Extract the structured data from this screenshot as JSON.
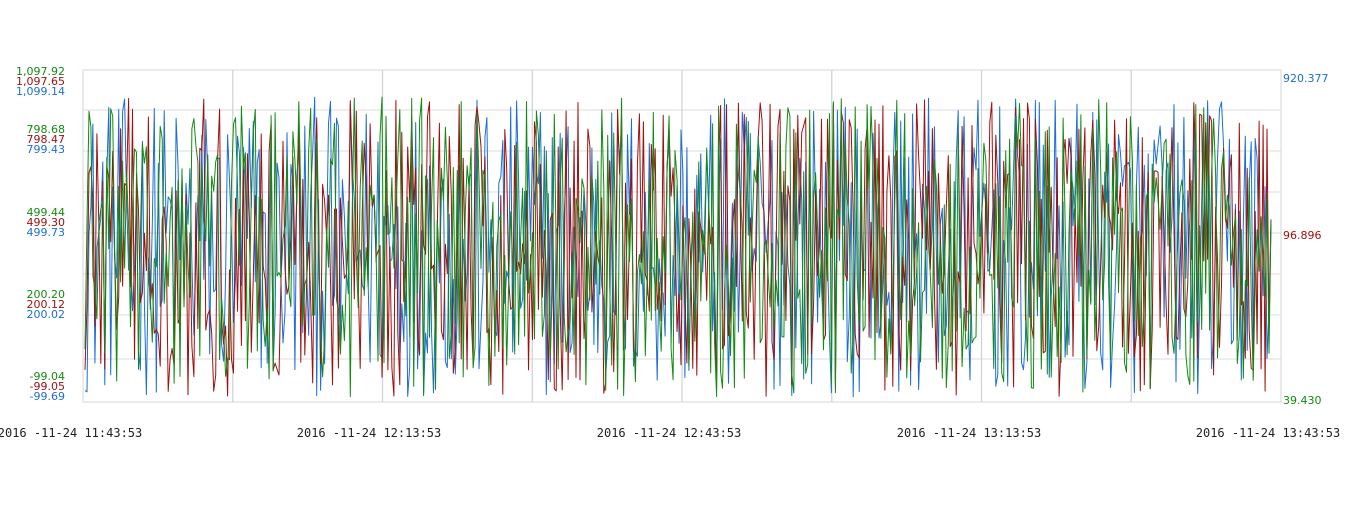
{
  "chart_data": {
    "type": "line",
    "title": "",
    "grid": true,
    "colors": {
      "green": "#138a13",
      "red": "#a01010",
      "blue": "#1c6ed6"
    },
    "x_ticks": [
      "2016 -11-24 11:43:53",
      "2016 -11-24 12:13:53",
      "2016 -11-24 12:43:53",
      "2016 -11-24 13:13:53",
      "2016 -11-24 13:43:53"
    ],
    "x_range": [
      "2016-11-24 11:43:53",
      "2016-11-24 13:43:53"
    ],
    "left_axes": [
      {
        "name": "green",
        "color": "#138a13",
        "ticks": [
          "1,097.92",
          "798.68",
          "499.44",
          "200.20",
          "-99.04"
        ],
        "ylim": [
          -99.04,
          1097.92
        ]
      },
      {
        "name": "red",
        "color": "#a01010",
        "ticks": [
          "1,097.65",
          "798.47",
          "499.30",
          "200.12",
          "-99.05"
        ],
        "ylim": [
          -99.05,
          1097.65
        ]
      },
      {
        "name": "blue",
        "color": "#1c6ed6",
        "ticks": [
          "1,099.14",
          "799.43",
          "499.73",
          "200.02",
          "-99.69"
        ],
        "ylim": [
          -99.69,
          1099.14
        ]
      }
    ],
    "right_axis_labels": [
      {
        "text": "920.377",
        "color": "#1c6ed6"
      },
      {
        "text": "96.896",
        "color": "#a01010"
      },
      {
        "text": "39.430",
        "color": "#138a13"
      }
    ],
    "series": [
      {
        "color": "#1c6ed6",
        "points": 600,
        "range": [
          -80,
          1000
        ]
      },
      {
        "color": "#a01010",
        "points": 600,
        "range": [
          -80,
          1000
        ]
      },
      {
        "color": "#138a13",
        "points": 600,
        "range": [
          -80,
          1000
        ]
      }
    ]
  }
}
